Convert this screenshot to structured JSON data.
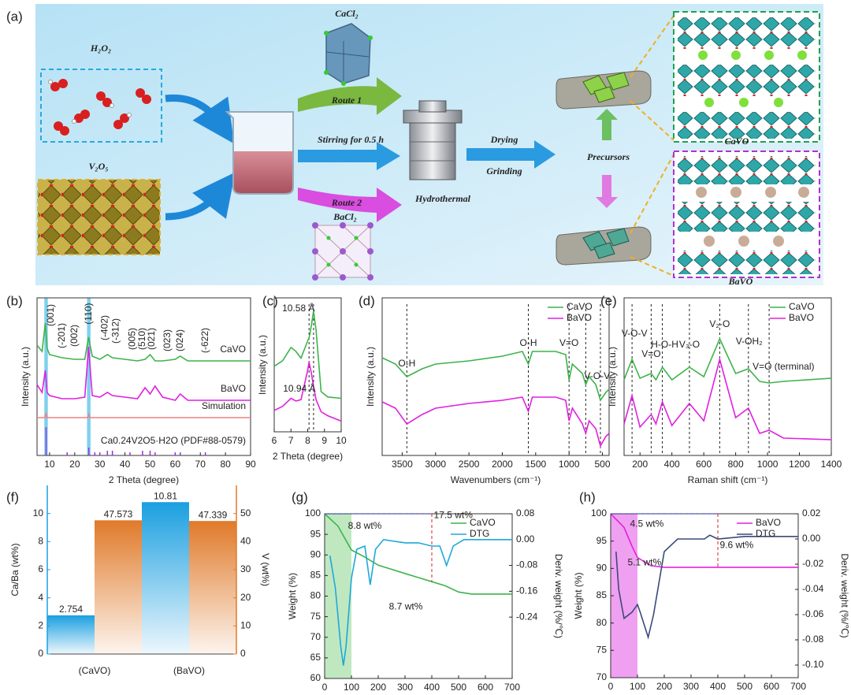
{
  "schematic": {
    "label": "(a)",
    "reactant_1": "H₂O₂",
    "reactant_2": "V₂O₅",
    "salt_1": "CaCl₂",
    "salt_2": "BaCl₂",
    "route_1": "Route 1",
    "route_2": "Route 2",
    "stirring": "Stirring for 0.5 h",
    "hydrothermal": "Hydrothermal",
    "drying": "Drying",
    "grinding": "Grinding",
    "precursors": "Precursors",
    "product_1": "CaVO",
    "product_2": "BaVO"
  },
  "chart_data": [
    {
      "type": "line",
      "label": "(b)",
      "xlabel": "2 Theta (degree)",
      "ylabel": "Intensity (a.u.)",
      "xlim": [
        5,
        90
      ],
      "xticks": [
        10,
        20,
        30,
        40,
        50,
        60,
        70,
        80,
        90
      ],
      "ylim": [
        0,
        10
      ],
      "legend": "inline",
      "highlight_x": [
        [
          7.9,
          9.3
        ],
        [
          24.9,
          26.3
        ]
      ],
      "highlight_color": "#7fd0ee",
      "series": [
        {
          "name": "CaVO",
          "color": "#3db34a",
          "x": [
            5,
            7,
            8.3,
            9,
            10,
            15,
            20,
            24,
            25.5,
            27,
            30,
            33,
            35,
            40,
            45,
            48,
            50,
            52,
            55,
            60,
            62,
            65,
            70,
            75,
            80,
            85,
            90
          ],
          "values": [
            7.0,
            6.6,
            8.4,
            6.8,
            6.4,
            6.2,
            6.1,
            6.1,
            7.5,
            6.3,
            6.1,
            6.4,
            6.2,
            6.1,
            6.0,
            6.1,
            6.4,
            6.0,
            6.0,
            6.1,
            6.3,
            6.0,
            6.0,
            6.0,
            6.0,
            6.0,
            6.0
          ]
        },
        {
          "name": "BaVO",
          "color": "#e020e0",
          "x": [
            5,
            7,
            8.3,
            9,
            10,
            15,
            20,
            24,
            25.5,
            27,
            30,
            33,
            35,
            40,
            45,
            48,
            50,
            52,
            55,
            60,
            62,
            65,
            70,
            75,
            80,
            85,
            90
          ],
          "values": [
            4.5,
            4.0,
            5.4,
            4.0,
            3.8,
            3.6,
            3.6,
            3.7,
            6.9,
            3.8,
            3.7,
            4.0,
            3.8,
            3.7,
            3.6,
            4.3,
            3.9,
            4.4,
            3.7,
            3.5,
            3.9,
            3.5,
            3.5,
            3.5,
            3.5,
            3.5,
            3.5
          ]
        },
        {
          "name": "Simulation",
          "color": "#f08080",
          "x": [
            5,
            8.2,
            8.6,
            9,
            25.2,
            25.6,
            26,
            90
          ],
          "values": [
            2.4,
            2.4,
            2.7,
            2.4,
            2.4,
            2.6,
            2.4,
            2.4
          ]
        },
        {
          "name": "Ca0.24V2O5·H2O (PDF#88-0579)",
          "color": "#9b30d9",
          "style": "stick",
          "x": [
            8.6,
            17,
            25.6,
            28,
            30,
            33,
            35,
            42,
            47,
            50,
            52,
            60,
            62,
            72
          ],
          "values": [
            1.8,
            0.2,
            0.5,
            0.2,
            0.2,
            0.3,
            0.3,
            0.2,
            0.3,
            0.3,
            0.2,
            0.2,
            0.2,
            0.2
          ]
        }
      ],
      "annotation_rotate": -90,
      "annotations": [
        {
          "text": "(001)",
          "x": 10.6,
          "y": 8.9
        },
        {
          "text": "(-201)",
          "x": 15,
          "y": 7.6
        },
        {
          "text": "(002)",
          "x": 20,
          "y": 7.6
        },
        {
          "text": "(110)",
          "x": 25.7,
          "y": 9.0
        },
        {
          "text": "(-402)",
          "x": 32,
          "y": 8.1
        },
        {
          "text": "(-312)",
          "x": 36.4,
          "y": 7.9
        },
        {
          "text": "(005)",
          "x": 43,
          "y": 7.4
        },
        {
          "text": "(510)",
          "x": 47,
          "y": 7.4
        },
        {
          "text": "(021)",
          "x": 50.8,
          "y": 7.4
        },
        {
          "text": "(023)",
          "x": 57,
          "y": 7.3
        },
        {
          "text": "(024)",
          "x": 62,
          "y": 7.3
        },
        {
          "text": "(-622)",
          "x": 72,
          "y": 7.3
        }
      ]
    },
    {
      "type": "line",
      "label": "(c)",
      "xlabel": "2 Theta (degree)",
      "ylabel": "Intensity (a.u.)",
      "xlim": [
        6,
        10
      ],
      "xticks": [
        6,
        7,
        8,
        9,
        10
      ],
      "ylim": [
        0,
        10
      ],
      "vlines": [
        8.35,
        8.08
      ],
      "x": [
        6,
        6.5,
        7,
        7.3,
        7.6,
        8,
        8.08,
        8.2,
        8.35,
        8.5,
        8.8,
        9.2,
        10
      ],
      "series": [
        {
          "name": "CaVO",
          "color": "#3db34a",
          "values": [
            4.9,
            5.3,
            6.3,
            6.0,
            5.5,
            6.8,
            7.0,
            7.8,
            9.0,
            7.6,
            3.0,
            2.6,
            2.5
          ]
        },
        {
          "name": "BaVO",
          "color": "#e020e0",
          "values": [
            1.6,
            1.9,
            2.5,
            2.3,
            2.4,
            4.6,
            5.2,
            4.5,
            3.4,
            2.4,
            1.5,
            1.2,
            0.8
          ]
        }
      ],
      "legend": "none",
      "annotations": [
        {
          "text": "10.58 Å",
          "x": 7.45,
          "y": 9.2
        },
        {
          "text": "10.94 Å",
          "x": 7.5,
          "y": 3.2
        }
      ]
    },
    {
      "type": "line",
      "label": "(d)",
      "xlabel": "Wavenumbers (cm⁻¹)",
      "ylabel": "Intensity (a.u.)",
      "xlim": [
        3800,
        400
      ],
      "xticks": [
        3500,
        3000,
        2500,
        2000,
        1500,
        1000,
        500
      ],
      "ylim": [
        0,
        10
      ],
      "legend": "upper right",
      "vlines": [
        3430,
        1610,
        1000,
        750,
        530
      ],
      "x": [
        3800,
        3600,
        3430,
        3200,
        3000,
        2500,
        2000,
        1700,
        1610,
        1550,
        1200,
        1050,
        1000,
        950,
        800,
        750,
        700,
        600,
        530,
        450,
        400
      ],
      "series": [
        {
          "name": "CaVO",
          "color": "#3db34a",
          "values": [
            6.2,
            5.8,
            5.0,
            5.5,
            5.8,
            6.0,
            6.3,
            6.6,
            5.8,
            6.6,
            6.6,
            6.4,
            4.8,
            5.8,
            5.2,
            4.5,
            5.0,
            4.5,
            3.5,
            4.0,
            4.2
          ]
        },
        {
          "name": "BaVO",
          "color": "#e020e0",
          "values": [
            3.4,
            3.0,
            2.0,
            2.6,
            3.0,
            3.3,
            3.5,
            3.7,
            2.8,
            3.7,
            3.7,
            3.5,
            2.2,
            3.0,
            2.0,
            1.4,
            2.2,
            1.7,
            0.6,
            1.2,
            1.4
          ]
        }
      ],
      "annotations": [
        {
          "text": "O-H",
          "x": 3430,
          "y": 5.8
        },
        {
          "text": "O-H",
          "x": 1610,
          "y": 7.1
        },
        {
          "text": "V=O",
          "x": 1000,
          "y": 7.1
        },
        {
          "text": "V-O-V",
          "x": 580,
          "y": 5.0
        }
      ]
    },
    {
      "type": "line",
      "label": "(e)",
      "xlabel": "Raman shift (cm⁻¹)",
      "ylabel": "Intensity (a.u.)",
      "xlim": [
        100,
        1400
      ],
      "xticks": [
        200,
        400,
        600,
        800,
        1000,
        1200,
        1400
      ],
      "ylim": [
        0,
        10
      ],
      "legend": "upper right",
      "vlines": [
        150,
        270,
        340,
        510,
        700,
        880,
        1010
      ],
      "x": [
        100,
        150,
        200,
        270,
        300,
        340,
        400,
        510,
        600,
        700,
        800,
        880,
        950,
        1010,
        1100,
        1400
      ],
      "series": [
        {
          "name": "CaVO",
          "color": "#3db34a",
          "values": [
            4.8,
            6.1,
            4.9,
            5.2,
            4.8,
            5.6,
            4.8,
            5.6,
            5.0,
            7.4,
            5.2,
            5.5,
            4.7,
            4.6,
            4.7,
            4.9
          ]
        },
        {
          "name": "BaVO",
          "color": "#e020e0",
          "values": [
            2.0,
            3.8,
            1.8,
            2.6,
            2.0,
            3.4,
            1.9,
            3.3,
            2.2,
            6.1,
            2.4,
            3.0,
            1.4,
            1.6,
            1.1,
            1.0
          ]
        }
      ],
      "annotations": [
        {
          "text": "V-O-V",
          "x": 165,
          "y": 7.7
        },
        {
          "text": "V=O",
          "x": 270,
          "y": 6.4
        },
        {
          "text": "H-O-H",
          "x": 355,
          "y": 7.0
        },
        {
          "text": "V₃-O",
          "x": 510,
          "y": 7.0
        },
        {
          "text": "V₂-O",
          "x": 700,
          "y": 8.3
        },
        {
          "text": "V-OH₂",
          "x": 885,
          "y": 7.2
        },
        {
          "text": "V=O (terminal)",
          "x": 1100,
          "y": 5.6
        }
      ]
    },
    {
      "type": "bar",
      "label": "(f)",
      "categories": [
        "(CaVO)",
        "(BaVO)"
      ],
      "category_colors": [
        "#3db34a",
        "#e020e0"
      ],
      "ylabel": "Ca/Ba (wt%)",
      "y2label": "V (wt%)",
      "ylim": [
        0,
        12
      ],
      "yticks": [
        0,
        2,
        4,
        6,
        8,
        10
      ],
      "y2lim": [
        0,
        60
      ],
      "y2ticks": [
        0,
        10,
        20,
        30,
        40,
        50
      ],
      "series": [
        {
          "color": "#1b9fe0",
          "values": [
            2.754,
            10.81
          ]
        },
        {
          "color": "#e07a2a",
          "axis": "y2",
          "values": [
            47.573,
            47.339
          ]
        }
      ]
    },
    {
      "type": "line",
      "label": "(g)",
      "xlabel": "Temperature (℃)",
      "ylabel": "Weight (%)",
      "y2label": "Deriv. weight (%/℃)",
      "xlim": [
        0,
        700
      ],
      "xticks": [
        0,
        100,
        200,
        300,
        400,
        500,
        600,
        700
      ],
      "ylim": [
        60,
        100
      ],
      "yticks": [
        60,
        65,
        70,
        75,
        80,
        85,
        90,
        95,
        100
      ],
      "y2lim": [
        -0.43,
        0.08
      ],
      "y2ticks": [
        0.08,
        {
          "value": 0,
          "label": "0.00"
        },
        -0.08,
        -0.16,
        -0.24
      ],
      "legend": "upper right",
      "shade_x": [
        0,
        100
      ],
      "shade_color": "#bfe8c0",
      "dashed_y": 100,
      "dashed_x": 400,
      "series": [
        {
          "name": "CaVO",
          "color": "#3db34a",
          "x": [
            0,
            50,
            80,
            100,
            150,
            200,
            250,
            300,
            350,
            400,
            450,
            500,
            550,
            600,
            700
          ],
          "values": [
            100,
            97,
            93.5,
            91.2,
            89.5,
            87.5,
            86.5,
            85.5,
            84.5,
            83.5,
            82.5,
            81,
            80.5,
            80.5,
            80.5
          ]
        },
        {
          "name": "DTG",
          "color": "#1fa8d8",
          "axis": "y2",
          "x": [
            20,
            40,
            60,
            70,
            80,
            100,
            120,
            150,
            170,
            190,
            220,
            300,
            350,
            400,
            430,
            455,
            480,
            520,
            600,
            700
          ],
          "values": [
            -0.05,
            -0.15,
            -0.33,
            -0.39,
            -0.33,
            -0.12,
            -0.03,
            -0.02,
            -0.14,
            -0.03,
            0.0,
            -0.01,
            -0.01,
            -0.02,
            -0.02,
            -0.08,
            -0.02,
            0.0,
            0.0,
            0.0
          ]
        }
      ],
      "annotations": [
        {
          "text": "8.8 wt%",
          "x": 150,
          "y": 97
        },
        {
          "text": "8.7 wt%",
          "x": 303,
          "y": 77.4
        },
        {
          "text": "17.5 wt%",
          "x": 480,
          "y": 99.6
        }
      ]
    },
    {
      "type": "line",
      "label": "(h)",
      "xlabel": "Temperature (℃)",
      "ylabel": "Weight (%)",
      "y2label": "Deriv. weight (%/℃)",
      "xlim": [
        0,
        700
      ],
      "xticks": [
        0,
        100,
        200,
        300,
        400,
        500,
        600,
        700
      ],
      "ylim": [
        70,
        100
      ],
      "yticks": [
        70,
        75,
        80,
        85,
        90,
        95,
        100
      ],
      "y2lim": [
        -0.11,
        0.02
      ],
      "y2ticks": [
        0.02,
        {
          "value": 0,
          "label": "0.00"
        },
        -0.02,
        -0.04,
        -0.06,
        -0.08,
        {
          "value": -0.1,
          "label": "-0.10"
        }
      ],
      "legend": "upper right",
      "shade_x": [
        0,
        100
      ],
      "shade_color": "#f0a0f0",
      "dashed_y": 100,
      "dashed_x": 400,
      "series": [
        {
          "name": "BaVO",
          "color": "#e020e0",
          "x": [
            0,
            50,
            80,
            100,
            150,
            200,
            300,
            400,
            500,
            600,
            700
          ],
          "values": [
            100,
            97.5,
            94,
            92,
            90.5,
            90.2,
            90.2,
            90.2,
            90.2,
            90.2,
            90.2
          ]
        },
        {
          "name": "DTG",
          "color": "#3a4a7a",
          "axis": "y2",
          "x": [
            20,
            30,
            50,
            80,
            100,
            110,
            140,
            160,
            200,
            250,
            300,
            350,
            370,
            400,
            500,
            600,
            700
          ],
          "values": [
            -0.01,
            -0.04,
            -0.063,
            -0.058,
            -0.052,
            -0.058,
            -0.078,
            -0.06,
            -0.01,
            0.0,
            0.0,
            0.0,
            0.003,
            0.0,
            0.002,
            0.002,
            0.002
          ]
        }
      ],
      "annotations": [
        {
          "text": "4.5 wt%",
          "x": 135,
          "y": 98.1
        },
        {
          "text": "5.1 wt%",
          "x": 126,
          "y": 91
        },
        {
          "text": "9.6 wt%",
          "x": 470,
          "y": 94.2
        }
      ]
    }
  ]
}
